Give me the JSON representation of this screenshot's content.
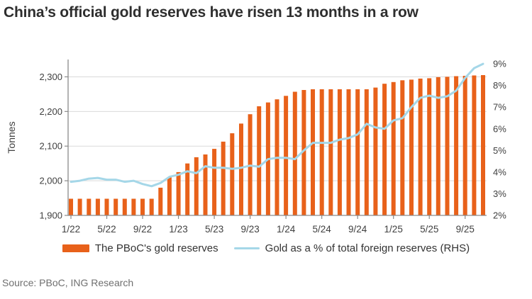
{
  "chart_data": {
    "type": "bar+line",
    "title": "China’s official gold reserves have risen 13 months in a row",
    "ylabel_left": "Tonnes",
    "grid": "horizontal-left-axis-only",
    "legend_position": "bottom",
    "categories": [
      "1/22",
      "2/22",
      "3/22",
      "4/22",
      "5/22",
      "6/22",
      "7/22",
      "8/22",
      "9/22",
      "10/22",
      "11/22",
      "12/22",
      "1/23",
      "2/23",
      "3/23",
      "4/23",
      "5/23",
      "6/23",
      "7/23",
      "8/23",
      "9/23",
      "10/23",
      "11/23",
      "12/23",
      "1/24",
      "2/24",
      "3/24",
      "4/24",
      "5/24",
      "6/24",
      "7/24",
      "8/24",
      "9/24",
      "10/24",
      "11/24",
      "12/24",
      "1/25",
      "2/25",
      "3/25",
      "4/25",
      "5/25",
      "6/25",
      "7/25",
      "8/25",
      "9/25",
      "10/25",
      "11/25"
    ],
    "x_tick_labels": [
      "1/22",
      "5/22",
      "9/22",
      "1/23",
      "5/23",
      "9/23",
      "1/24",
      "5/24",
      "9/24",
      "1/25",
      "5/25",
      "9/25"
    ],
    "y_left": {
      "min": 1900,
      "max": 2350,
      "ticks": [
        1900,
        2000,
        2100,
        2200,
        2300
      ],
      "tick_labels": [
        "1,900",
        "2,000",
        "2,100",
        "2,200",
        "2,300"
      ]
    },
    "y_right": {
      "min": 2,
      "max": 9.2,
      "ticks": [
        2,
        3,
        4,
        5,
        6,
        7,
        8,
        9
      ],
      "tick_labels": [
        "2%",
        "3%",
        "4%",
        "5%",
        "6%",
        "7%",
        "8%",
        "9%"
      ]
    },
    "series": [
      {
        "name": "The PBoC's gold reserves",
        "type": "bar",
        "axis": "left",
        "values": [
          1948,
          1948,
          1948,
          1948,
          1948,
          1948,
          1948,
          1948,
          1948,
          1948,
          1980,
          2010,
          2025,
          2050,
          2068,
          2076,
          2092,
          2113,
          2137,
          2165,
          2192,
          2215,
          2226,
          2235,
          2245,
          2257,
          2262,
          2264,
          2264,
          2264,
          2264,
          2264,
          2264,
          2264,
          2269,
          2280,
          2285,
          2290,
          2292,
          2295,
          2296,
          2299,
          2300,
          2302,
          2303,
          2304,
          2305
        ]
      },
      {
        "name": "Gold as a % of total foreign reserves (RHS)",
        "type": "line",
        "axis": "right",
        "values": [
          3.55,
          3.6,
          3.7,
          3.73,
          3.65,
          3.65,
          3.55,
          3.6,
          3.45,
          3.35,
          3.5,
          3.78,
          3.88,
          4.04,
          3.95,
          4.27,
          4.2,
          4.2,
          4.15,
          4.2,
          4.3,
          4.25,
          4.6,
          4.66,
          4.66,
          4.6,
          5.0,
          5.35,
          5.35,
          5.35,
          5.5,
          5.57,
          5.74,
          6.23,
          6.06,
          6.0,
          6.39,
          6.49,
          7.0,
          7.43,
          7.53,
          7.43,
          7.5,
          7.76,
          8.35,
          8.8,
          9.0
        ]
      }
    ]
  },
  "legend": {
    "bars_label": "The PBoC's gold reserves",
    "line_label": "Gold as a % of total foreign reserves (RHS)"
  },
  "source": "Source: PBoC, ING Research",
  "colors": {
    "bar_orange": "#e8611a",
    "line_blue": "#a5d7e8",
    "grid": "#d9d9d9",
    "axis": "#8a8a8a",
    "title_text": "#2e2e2e",
    "tick_text": "#404040",
    "legend_text": "#333333",
    "source_text": "#6f6f6f"
  }
}
